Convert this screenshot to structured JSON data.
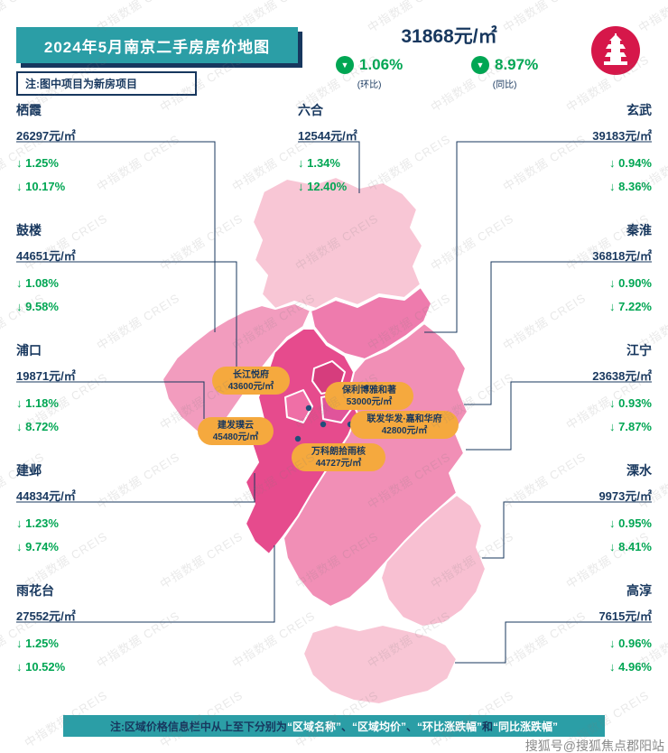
{
  "header": {
    "title": "2024年5月南京二手房房价地图",
    "note": "注:图中项目为新房项目"
  },
  "summary": {
    "avg_price": "31868元/㎡",
    "down_arrow": "▼",
    "mom_value": "1.06%",
    "mom_label": "(环比)",
    "yoy_value": "8.97%",
    "yoy_label": "(同比)"
  },
  "districts": [
    {
      "id": "qixia",
      "name": "栖霞",
      "price": "26297元/㎡",
      "mom": "↓ 1.25%",
      "yoy": "↓ 10.17%"
    },
    {
      "id": "liuhe",
      "name": "六合",
      "price": "12544元/㎡",
      "mom": "↓ 1.34%",
      "yoy": "↓ 12.40%"
    },
    {
      "id": "xuanwu",
      "name": "玄武",
      "price": "39183元/㎡",
      "mom": "↓ 0.94%",
      "yoy": "↓ 8.36%"
    },
    {
      "id": "gulou",
      "name": "鼓楼",
      "price": "44651元/㎡",
      "mom": "↓ 1.08%",
      "yoy": "↓ 9.58%"
    },
    {
      "id": "qinhuai",
      "name": "秦淮",
      "price": "36818元/㎡",
      "mom": "↓ 0.90%",
      "yoy": "↓ 7.22%"
    },
    {
      "id": "pukou",
      "name": "浦口",
      "price": "19871元/㎡",
      "mom": "↓ 1.18%",
      "yoy": "↓ 8.72%"
    },
    {
      "id": "jiangning",
      "name": "江宁",
      "price": "23638元/㎡",
      "mom": "↓ 0.93%",
      "yoy": "↓ 7.87%"
    },
    {
      "id": "jianye",
      "name": "建邺",
      "price": "44834元/㎡",
      "mom": "↓ 1.23%",
      "yoy": "↓ 9.74%"
    },
    {
      "id": "lishui",
      "name": "溧水",
      "price": "9973元/㎡",
      "mom": "↓ 0.95%",
      "yoy": "↓ 8.41%"
    },
    {
      "id": "yuhuatai",
      "name": "雨花台",
      "price": "27552元/㎡",
      "mom": "↓ 1.25%",
      "yoy": "↓ 10.52%"
    },
    {
      "id": "gaochun",
      "name": "高淳",
      "price": "7615元/㎡",
      "mom": "↓ 0.96%",
      "yoy": "↓ 4.96%"
    }
  ],
  "projects": [
    {
      "name": "长江悦府",
      "price": "43600元/㎡"
    },
    {
      "name": "保利博雅和著",
      "price": "53000元/㎡"
    },
    {
      "name": "建发璞云",
      "price": "45480元/㎡"
    },
    {
      "name": "联发华发·嘉和华府",
      "price": "42800元/㎡"
    },
    {
      "name": "万科朗拾雨核",
      "price": "44727元/㎡"
    }
  ],
  "footer": {
    "segments": [
      "注:区域价格信息栏中从上至下分别为",
      "“区域名称”",
      "、",
      "“区域均价”",
      "、",
      "“环比涨跌幅”",
      "和",
      "“同比涨跌幅”"
    ],
    "sohu_watermark": "搜狐号@搜狐焦点郡阳站"
  },
  "watermark": {
    "text": "中指数据 CREIS"
  },
  "colors": {
    "teal": "#2B9EA6",
    "navy": "#17375E",
    "green": "#00A653",
    "orange": "#F5A93E",
    "logo_red": "#D6174A",
    "map_light": "#F8C6D5",
    "map_mid": "#F29CBE",
    "map_bright": "#EE7BAD",
    "map_dark": "#E64B8D"
  }
}
